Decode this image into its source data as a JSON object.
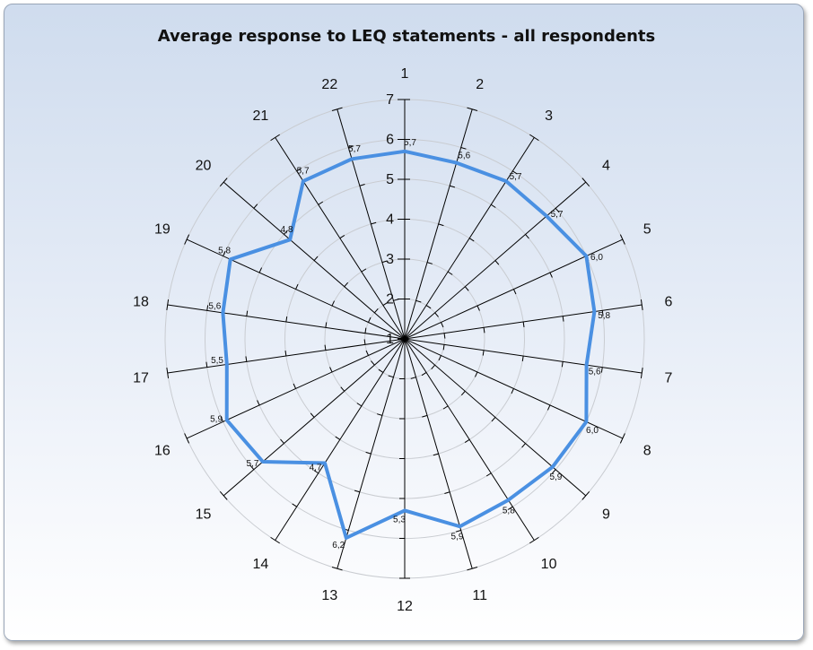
{
  "chart_data": {
    "type": "radar",
    "title": "Average response to LEQ statements - all respondents",
    "categories": [
      "1",
      "2",
      "3",
      "4",
      "5",
      "6",
      "7",
      "8",
      "9",
      "10",
      "11",
      "12",
      "13",
      "14",
      "15",
      "16",
      "17",
      "18",
      "19",
      "20",
      "21",
      "22"
    ],
    "values": [
      5.7,
      5.6,
      5.7,
      5.7,
      6.0,
      5.8,
      5.6,
      6.0,
      5.9,
      5.8,
      5.9,
      5.3,
      6.2,
      4.7,
      5.7,
      5.9,
      5.5,
      5.6,
      5.8,
      4.8,
      5.7,
      5.7
    ],
    "value_labels": [
      "5,7",
      "5,6",
      "5,7",
      "5,7",
      "6,0",
      "5,8",
      "5,6",
      "6,0",
      "5,9",
      "5,8",
      "5,9",
      "5,3",
      "6,2",
      "4,7",
      "5,7",
      "5,9",
      "5,5",
      "5,6",
      "5,8",
      "4,8",
      "5,7",
      "5,7"
    ],
    "rlim": [
      1,
      7
    ],
    "ticks": [
      "1",
      "2",
      "3",
      "4",
      "5",
      "6",
      "7"
    ],
    "series_color": "#4a90e2",
    "grid": true,
    "legend": "none"
  }
}
